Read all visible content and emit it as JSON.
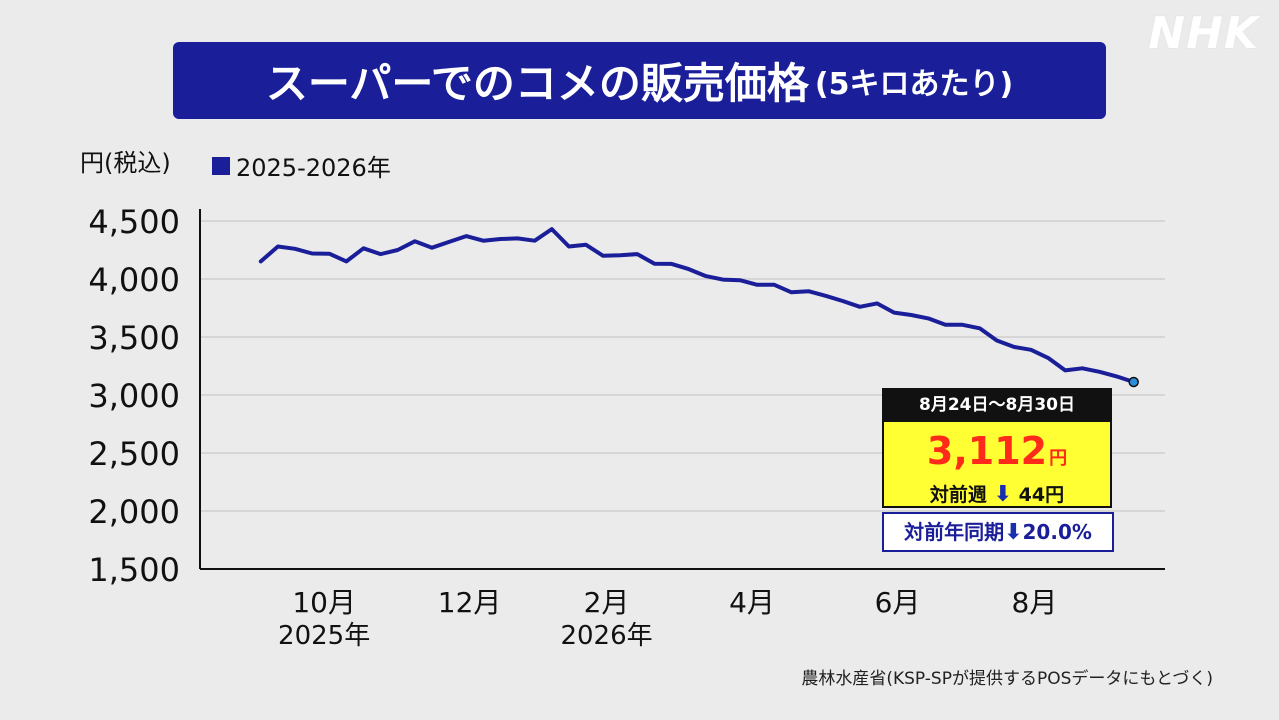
{
  "logo": "NHK",
  "title": {
    "main": "スーパーでのコメの販売価格",
    "sub": "(5キロあたり)"
  },
  "colors": {
    "title_bg": "#1a1f99",
    "series": "#1a1f99",
    "callout_bg": "#ffff33",
    "price": "#ff2a1a"
  },
  "callout": {
    "date": "8月24日～8月30日",
    "price": "3,112",
    "price_unit": "円",
    "week_label": "対前週",
    "week_arrow": "⬇",
    "week_value": "44円",
    "year_label": "対前年同期",
    "year_arrow": "⬇",
    "year_value": "20.0%"
  },
  "source": "農林水産省(KSP-SPが提供するPOSデータにもとづく)",
  "chart_data": {
    "type": "line",
    "ylabel": "円(税込)",
    "ylim": [
      1500,
      4500
    ],
    "yticks": [
      4500,
      4000,
      3500,
      3000,
      2500,
      2000,
      1500
    ],
    "ytick_labels": [
      "4,500",
      "4,000",
      "3,500",
      "3,000",
      "2,500",
      "2,000",
      "1,500"
    ],
    "xlim": [
      0,
      52
    ],
    "xticks": [
      {
        "x": 5.5,
        "label": "10月",
        "sub": "2025年"
      },
      {
        "x": 14,
        "label": "12月",
        "sub": ""
      },
      {
        "x": 22,
        "label": "2月",
        "sub": "2026年"
      },
      {
        "x": 30.5,
        "label": "4月",
        "sub": ""
      },
      {
        "x": 39,
        "label": "6月",
        "sub": ""
      },
      {
        "x": 47,
        "label": "8月",
        "sub": ""
      }
    ],
    "grid": true,
    "legend": "top-left",
    "series": [
      {
        "name": "2025-2026年",
        "values": [
          [
            1.8,
            4152
          ],
          [
            2.8,
            4280
          ],
          [
            3.8,
            4260
          ],
          [
            4.8,
            4220
          ],
          [
            5.8,
            4218
          ],
          [
            6.8,
            4152
          ],
          [
            7.8,
            4265
          ],
          [
            8.8,
            4215
          ],
          [
            9.8,
            4250
          ],
          [
            10.8,
            4325
          ],
          [
            11.8,
            4270
          ],
          [
            12.8,
            4320
          ],
          [
            13.8,
            4370
          ],
          [
            14.8,
            4330
          ],
          [
            15.8,
            4345
          ],
          [
            16.8,
            4350
          ],
          [
            17.8,
            4330
          ],
          [
            18.8,
            4430
          ],
          [
            19.8,
            4280
          ],
          [
            20.8,
            4295
          ],
          [
            21.8,
            4200
          ],
          [
            22.8,
            4205
          ],
          [
            23.8,
            4215
          ],
          [
            24.8,
            4132
          ],
          [
            25.8,
            4130
          ],
          [
            26.8,
            4085
          ],
          [
            27.8,
            4025
          ],
          [
            28.8,
            3995
          ],
          [
            29.8,
            3990
          ],
          [
            30.8,
            3950
          ],
          [
            31.8,
            3950
          ],
          [
            32.8,
            3885
          ],
          [
            33.8,
            3895
          ],
          [
            34.8,
            3855
          ],
          [
            35.8,
            3810
          ],
          [
            36.8,
            3760
          ],
          [
            37.8,
            3790
          ],
          [
            38.8,
            3710
          ],
          [
            39.8,
            3690
          ],
          [
            40.8,
            3660
          ],
          [
            41.8,
            3605
          ],
          [
            42.8,
            3605
          ],
          [
            43.8,
            3575
          ],
          [
            44.8,
            3470
          ],
          [
            45.8,
            3415
          ],
          [
            46.8,
            3390
          ],
          [
            47.8,
            3320
          ],
          [
            48.8,
            3212
          ],
          [
            49.8,
            3230
          ],
          [
            50.8,
            3200
          ],
          [
            51.8,
            3160
          ],
          [
            52.8,
            3112
          ]
        ]
      }
    ]
  }
}
